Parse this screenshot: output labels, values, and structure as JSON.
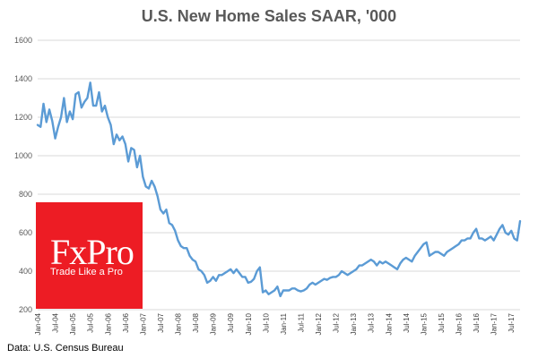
{
  "chart_data": {
    "type": "line",
    "title": "U.S. New Home Sales SAAR, '000",
    "xlabel": "",
    "ylabel": "",
    "ylim": [
      200,
      1600
    ],
    "yticks": [
      "200",
      "400",
      "600",
      "800",
      "1000",
      "1200",
      "1400",
      "1600"
    ],
    "xticks": [
      "Jan-04",
      "Jul-04",
      "Jan-05",
      "Jul-05",
      "Jan-06",
      "Jul-06",
      "Jan-07",
      "Jul-07",
      "Jan-08",
      "Jul-08",
      "Jan-09",
      "Jul-09",
      "Jan-10",
      "Jul-10",
      "Jan-11",
      "Jul-11",
      "Jan-12",
      "Jul-12",
      "Jan-13",
      "Jul-13",
      "Jan-14",
      "Jul-14",
      "Jan-15",
      "Jul-15",
      "Jan-16",
      "Jul-16",
      "Jan-17",
      "Jul-17"
    ],
    "grid": true,
    "series": [
      {
        "name": "New Home Sales",
        "color": "#5b9bd5",
        "start": "Jan-04",
        "values": [
          1160,
          1150,
          1270,
          1175,
          1240,
          1180,
          1090,
          1150,
          1200,
          1300,
          1175,
          1230,
          1190,
          1320,
          1330,
          1250,
          1280,
          1300,
          1380,
          1260,
          1260,
          1330,
          1230,
          1260,
          1200,
          1160,
          1060,
          1110,
          1080,
          1100,
          1060,
          970,
          1040,
          1030,
          940,
          1000,
          890,
          840,
          830,
          870,
          840,
          790,
          720,
          700,
          720,
          650,
          640,
          610,
          560,
          530,
          520,
          520,
          480,
          460,
          450,
          410,
          400,
          380,
          340,
          350,
          370,
          350,
          380,
          380,
          390,
          400,
          410,
          390,
          410,
          390,
          370,
          370,
          340,
          345,
          360,
          400,
          420,
          290,
          300,
          280,
          290,
          300,
          320,
          270,
          300,
          300,
          300,
          310,
          310,
          300,
          295,
          300,
          310,
          330,
          340,
          330,
          340,
          350,
          360,
          355,
          365,
          370,
          370,
          380,
          400,
          390,
          380,
          390,
          400,
          410,
          430,
          430,
          440,
          450,
          460,
          450,
          430,
          450,
          440,
          450,
          440,
          430,
          420,
          410,
          440,
          460,
          470,
          460,
          450,
          480,
          500,
          520,
          540,
          550,
          480,
          490,
          500,
          500,
          490,
          480,
          500,
          510,
          520,
          530,
          540,
          560,
          560,
          570,
          570,
          600,
          620,
          570,
          570,
          560,
          570,
          580,
          560,
          590,
          620,
          640,
          600,
          590,
          610,
          570,
          560,
          660
        ]
      }
    ]
  },
  "source": {
    "text": "Data: U.S. Census Bureau"
  },
  "logo": {
    "name": "FxPro",
    "slogan": "Trade Like a Pro",
    "color": "#ed1c24"
  }
}
